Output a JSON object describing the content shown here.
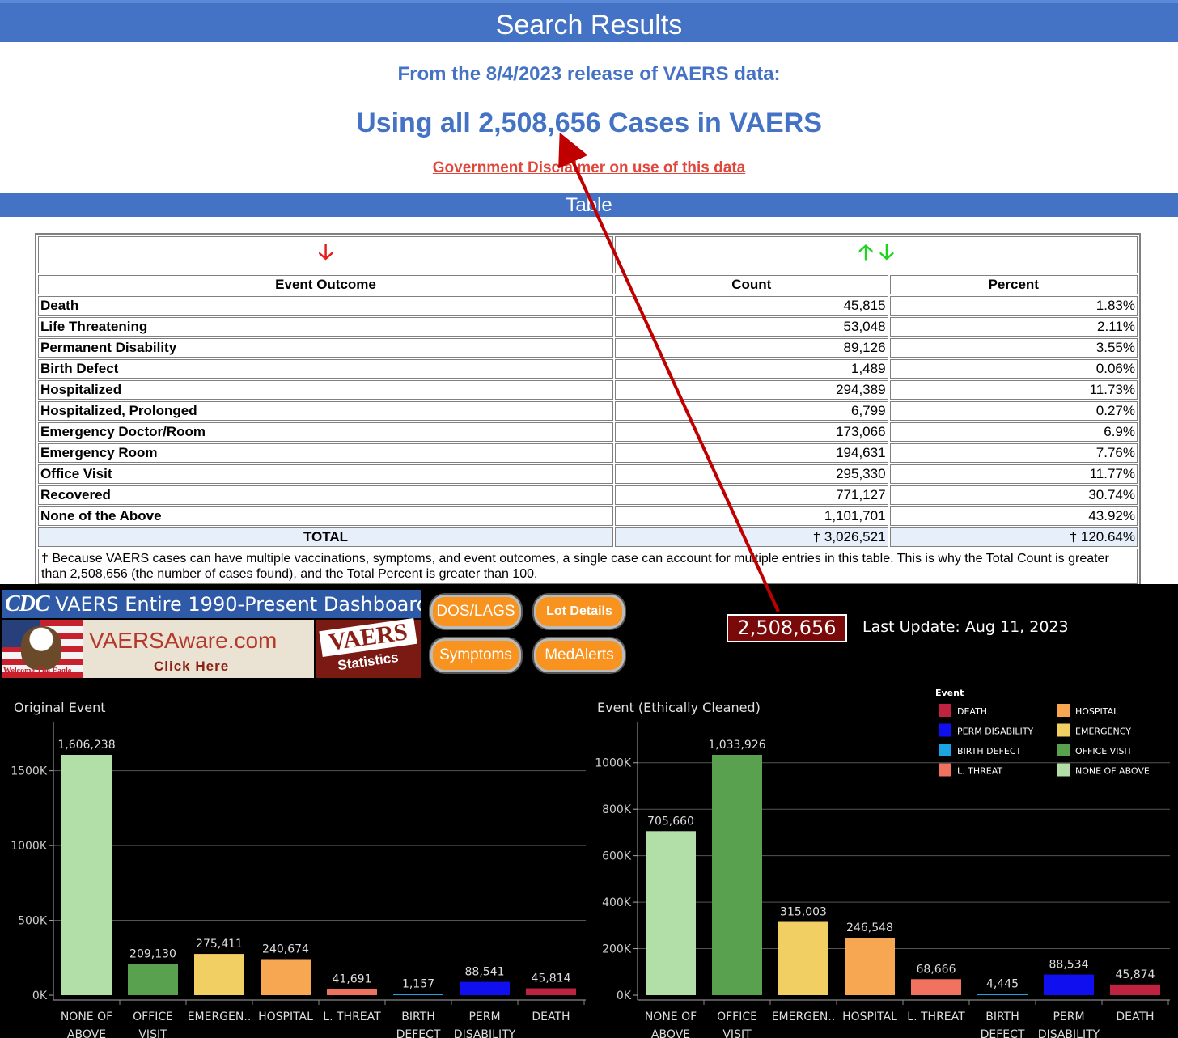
{
  "header": {
    "title": "Search Results"
  },
  "summary": {
    "release_line": "From the 8/4/2023 release of VAERS data:",
    "cases_line": "Using all 2,508,656 Cases in VAERS",
    "disclaimer_link": "Government Disclaimer on use of this data"
  },
  "table_section": {
    "title": "Table"
  },
  "table": {
    "sort_arrow_down": "🡣",
    "sort_arrow_up": "🡡",
    "columns": [
      "Event Outcome",
      "Count",
      "Percent"
    ],
    "rows": [
      {
        "label": "Death",
        "count": "45,815",
        "percent": "1.83%"
      },
      {
        "label": "Life Threatening",
        "count": "53,048",
        "percent": "2.11%"
      },
      {
        "label": "Permanent Disability",
        "count": "89,126",
        "percent": "3.55%"
      },
      {
        "label": "Birth Defect",
        "count": "1,489",
        "percent": "0.06%"
      },
      {
        "label": "Hospitalized",
        "count": "294,389",
        "percent": "11.73%"
      },
      {
        "label": "Hospitalized, Prolonged",
        "count": "6,799",
        "percent": "0.27%"
      },
      {
        "label": "Emergency Doctor/Room",
        "count": "173,066",
        "percent": "6.9%"
      },
      {
        "label": "Emergency Room",
        "count": "194,631",
        "percent": "7.76%"
      },
      {
        "label": "Office Visit",
        "count": "295,330",
        "percent": "11.77%"
      },
      {
        "label": "Recovered",
        "count": "771,127",
        "percent": "30.74%"
      },
      {
        "label": "None of the Above",
        "count": "1,101,701",
        "percent": "43.92%"
      }
    ],
    "total": {
      "label": "TOTAL",
      "count": "† 3,026,521",
      "percent": "† 120.64%"
    },
    "footnote": "† Because VAERS cases can have multiple vaccinations, symptoms, and event outcomes, a single case can account for multiple entries in this table. This is why the Total Count is greater than 2,508,656 (the number of cases found), and the Total Percent is greater than 100."
  },
  "dashboard": {
    "cdc_logo": "CDC",
    "title": "VAERS Entire 1990-Present Dashboard",
    "aware_site": "VAERSAware.com",
    "aware_click": "Click Here",
    "aware_caption": "Welcome The Eagle",
    "badge_big": "VAERS",
    "badge_small": "Statistics",
    "buttons": {
      "dos": "DOS/LAGS",
      "lot": "Lot Details",
      "symptoms": "Symptoms",
      "medalerts": "MedAlerts"
    },
    "total_cases": "2,508,656",
    "last_update": "Last Update: Aug 11, 2023",
    "legend_title": "Event"
  },
  "colors": {
    "none_of_above": "#b2dfa7",
    "office_visit": "#59a14f",
    "emergency": "#f1cf63",
    "hospital": "#f7a651",
    "l_threat": "#f1735f",
    "birth_defect": "#1ba3e3",
    "perm_disability": "#0f0ff0",
    "death": "#c0233f",
    "annotation_arrow": "#c00000"
  },
  "chart_data": [
    {
      "type": "bar",
      "title": "Original Event",
      "categories": [
        [
          "NONE OF",
          "ABOVE"
        ],
        [
          "OFFICE",
          "VISIT"
        ],
        [
          "EMERGEN..",
          ""
        ],
        [
          "HOSPITAL",
          ""
        ],
        [
          "L. THREAT",
          ""
        ],
        [
          "BIRTH",
          "DEFECT"
        ],
        [
          "PERM",
          "DISABILITY"
        ],
        [
          "DEATH",
          ""
        ]
      ],
      "color_keys": [
        "none_of_above",
        "office_visit",
        "emergency",
        "hospital",
        "l_threat",
        "birth_defect",
        "perm_disability",
        "death"
      ],
      "values": [
        1606238,
        209130,
        275411,
        240674,
        41691,
        1157,
        88541,
        45814
      ],
      "value_labels": [
        "1,606,238",
        "209,130",
        "275,411",
        "240,674",
        "41,691",
        "1,157",
        "88,541",
        "45,814"
      ],
      "yticks": [
        0,
        500000,
        1000000,
        1500000
      ],
      "ytick_labels": [
        "0K",
        "500K",
        "1000K",
        "1500K"
      ],
      "ylim": [
        0,
        1606238
      ],
      "grid": true
    },
    {
      "type": "bar",
      "title": "Event (Ethically Cleaned)",
      "categories": [
        [
          "NONE OF",
          "ABOVE"
        ],
        [
          "OFFICE",
          "VISIT"
        ],
        [
          "EMERGEN..",
          ""
        ],
        [
          "HOSPITAL",
          ""
        ],
        [
          "L. THREAT",
          ""
        ],
        [
          "BIRTH",
          "DEFECT"
        ],
        [
          "PERM",
          "DISABILITY"
        ],
        [
          "DEATH",
          ""
        ]
      ],
      "color_keys": [
        "none_of_above",
        "office_visit",
        "emergency",
        "hospital",
        "l_threat",
        "birth_defect",
        "perm_disability",
        "death"
      ],
      "values": [
        705660,
        1033926,
        315003,
        246548,
        68666,
        4445,
        88534,
        45874
      ],
      "value_labels": [
        "705,660",
        "1,033,926",
        "315,003",
        "246,548",
        "68,666",
        "4,445",
        "88,534",
        "45,874"
      ],
      "yticks": [
        0,
        200000,
        400000,
        600000,
        800000,
        1000000
      ],
      "ytick_labels": [
        "0K",
        "200K",
        "400K",
        "600K",
        "800K",
        "1000K"
      ],
      "ylim": [
        0,
        1033926
      ],
      "grid": true,
      "legend": {
        "title": "Event",
        "placement": "top-right",
        "items": [
          {
            "label": "DEATH",
            "color_key": "death"
          },
          {
            "label": "HOSPITAL",
            "color_key": "hospital"
          },
          {
            "label": "PERM DISABILITY",
            "color_key": "perm_disability"
          },
          {
            "label": "EMERGENCY",
            "color_key": "emergency"
          },
          {
            "label": "BIRTH DEFECT",
            "color_key": "birth_defect"
          },
          {
            "label": "OFFICE VISIT",
            "color_key": "office_visit"
          },
          {
            "label": "L. THREAT",
            "color_key": "l_threat"
          },
          {
            "label": "NONE OF ABOVE",
            "color_key": "none_of_above"
          }
        ]
      }
    }
  ]
}
